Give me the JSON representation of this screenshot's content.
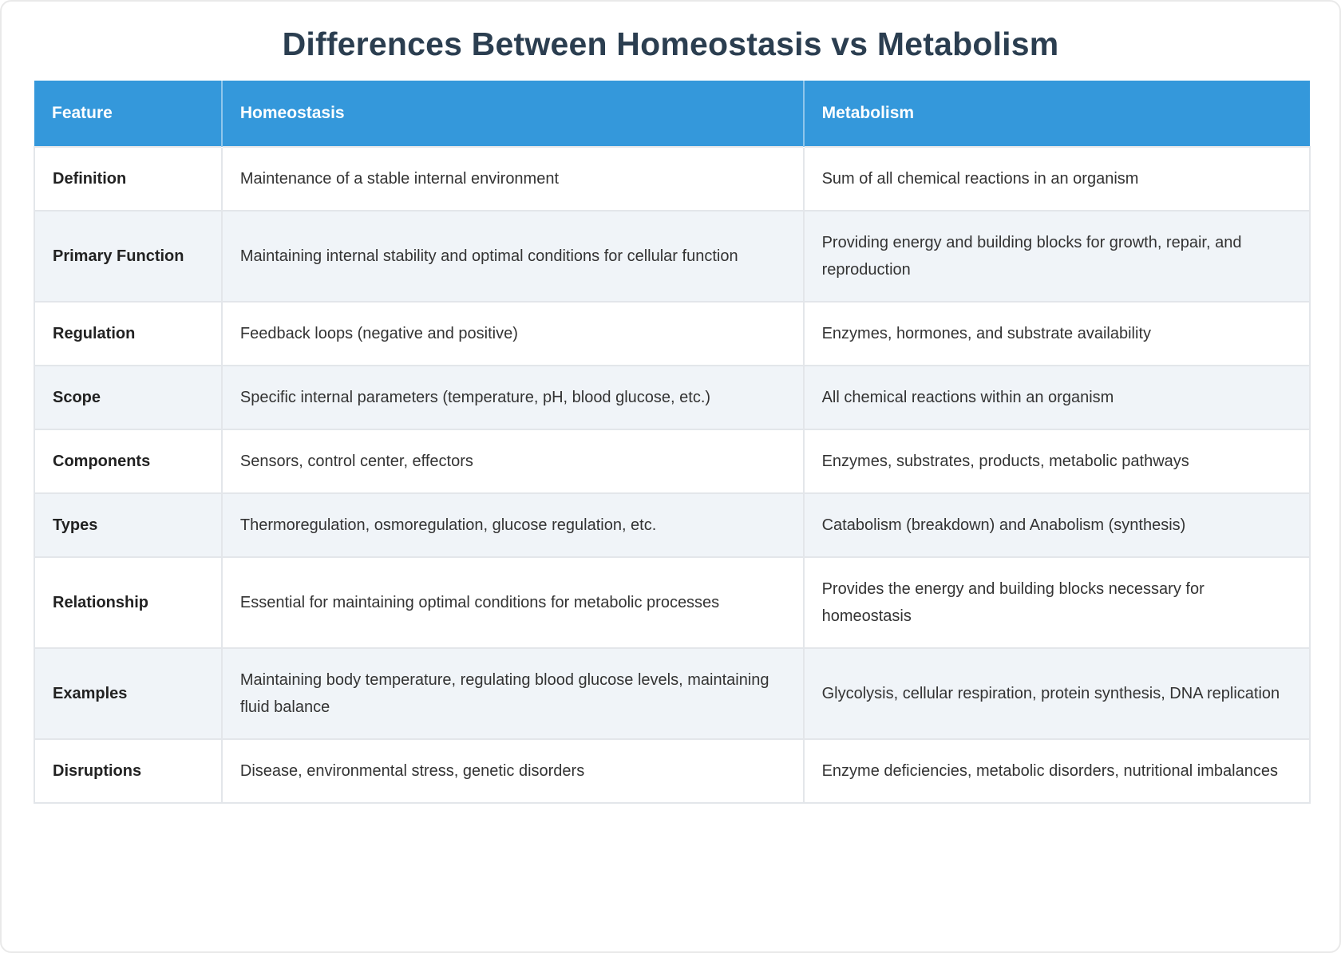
{
  "page": {
    "title": "Differences Between Homeostasis vs Metabolism"
  },
  "colors": {
    "header_bg": "#3498db",
    "header_text": "#ffffff",
    "title_text": "#2b3e50",
    "row_alt_bg": "#f0f4f8",
    "row_bg": "#ffffff",
    "cell_border": "#e3e6ea",
    "cell_text": "#333333"
  },
  "table": {
    "headers": [
      "Feature",
      "Homeostasis",
      "Metabolism"
    ],
    "rows": [
      {
        "feature": "Definition",
        "homeostasis": "Maintenance of a stable internal environment",
        "metabolism": "Sum of all chemical reactions in an organism"
      },
      {
        "feature": "Primary Function",
        "homeostasis": "Maintaining internal stability and optimal conditions for cellular function",
        "metabolism": "Providing energy and building blocks for growth, repair, and reproduction"
      },
      {
        "feature": "Regulation",
        "homeostasis": "Feedback loops (negative and positive)",
        "metabolism": "Enzymes, hormones, and substrate availability"
      },
      {
        "feature": "Scope",
        "homeostasis": "Specific internal parameters (temperature, pH, blood glucose, etc.)",
        "metabolism": "All chemical reactions within an organism"
      },
      {
        "feature": "Components",
        "homeostasis": "Sensors, control center, effectors",
        "metabolism": "Enzymes, substrates, products, metabolic pathways"
      },
      {
        "feature": "Types",
        "homeostasis": "Thermoregulation, osmoregulation, glucose regulation, etc.",
        "metabolism": "Catabolism (breakdown) and Anabolism (synthesis)"
      },
      {
        "feature": "Relationship",
        "homeostasis": "Essential for maintaining optimal conditions for metabolic processes",
        "metabolism": "Provides the energy and building blocks necessary for homeostasis"
      },
      {
        "feature": "Examples",
        "homeostasis": "Maintaining body temperature, regulating blood glucose levels, maintaining fluid balance",
        "metabolism": "Glycolysis, cellular respiration, protein synthesis, DNA replication"
      },
      {
        "feature": "Disruptions",
        "homeostasis": "Disease, environmental stress, genetic disorders",
        "metabolism": "Enzyme deficiencies, metabolic disorders, nutritional imbalances"
      }
    ]
  }
}
